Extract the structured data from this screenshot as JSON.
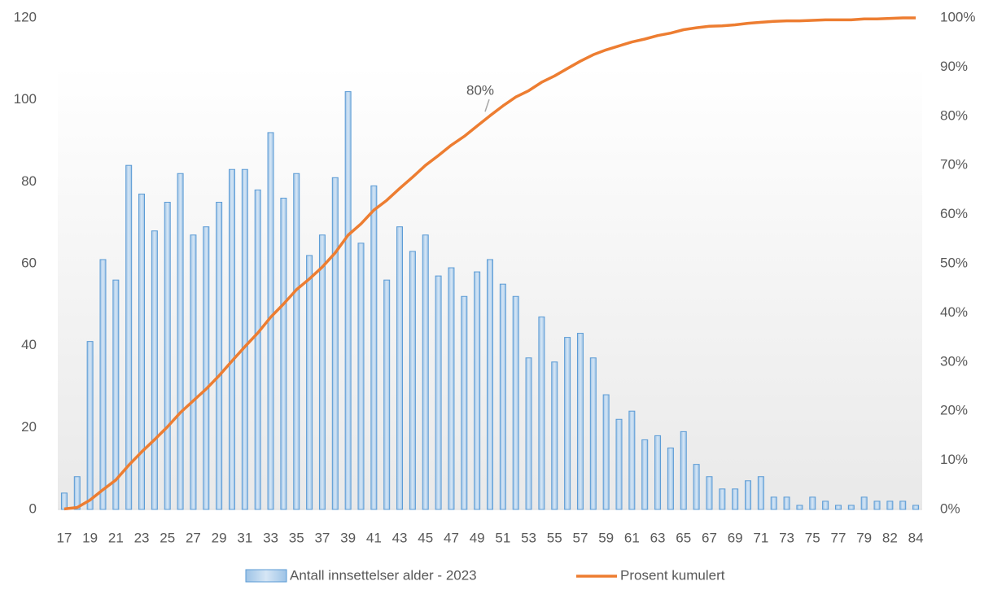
{
  "chart_data": {
    "type": "bar-line",
    "categories": [
      "17",
      null,
      "19",
      null,
      "21",
      null,
      "23",
      null,
      "25",
      null,
      "27",
      null,
      "29",
      null,
      "31",
      null,
      "33",
      null,
      "35",
      null,
      "37",
      null,
      "39",
      null,
      "41",
      null,
      "43",
      null,
      "45",
      null,
      "47",
      null,
      "49",
      null,
      "51",
      null,
      "53",
      null,
      "55",
      null,
      "57",
      null,
      "59",
      null,
      "61",
      null,
      "63",
      null,
      "65",
      null,
      "67",
      null,
      "69",
      null,
      "71",
      null,
      "73",
      null,
      "75",
      null,
      "77",
      null,
      "79",
      null,
      "82",
      null,
      "84"
    ],
    "series": [
      {
        "name": "Antall innsettelser alder - 2023",
        "type": "bar",
        "color": "#5b9bd5",
        "values": [
          4,
          8,
          41,
          61,
          56,
          84,
          77,
          68,
          75,
          82,
          67,
          69,
          75,
          83,
          83,
          78,
          92,
          76,
          82,
          62,
          67,
          81,
          102,
          65,
          79,
          56,
          69,
          63,
          67,
          57,
          59,
          52,
          58,
          61,
          55,
          52,
          37,
          47,
          36,
          42,
          43,
          37,
          28,
          22,
          24,
          17,
          18,
          15,
          19,
          11,
          8,
          5,
          5,
          7,
          8,
          3,
          3,
          1,
          3,
          2,
          1,
          1,
          3,
          2,
          2,
          2,
          1
        ]
      },
      {
        "name": "Prosent kumulert",
        "type": "line",
        "axis": "y2",
        "color": "#ed7d31",
        "values": [
          0.1,
          0.4,
          1.9,
          4.0,
          6.0,
          9.0,
          11.7,
          14.2,
          16.8,
          19.7,
          22.1,
          24.5,
          27.2,
          30.2,
          33.1,
          35.9,
          39.1,
          41.8,
          44.7,
          46.9,
          49.3,
          52.2,
          55.8,
          58.1,
          60.9,
          62.9,
          65.3,
          67.6,
          70.0,
          72.0,
          74.1,
          75.9,
          78.0,
          80.1,
          82.1,
          83.9,
          85.2,
          86.9,
          88.2,
          89.7,
          91.2,
          92.5,
          93.5,
          94.3,
          95.1,
          95.7,
          96.4,
          96.9,
          97.6,
          98.0,
          98.3,
          98.4,
          98.6,
          98.9,
          99.1,
          99.3,
          99.4,
          99.4,
          99.5,
          99.6,
          99.6,
          99.6,
          99.8,
          99.8,
          99.9,
          100.0,
          100.0
        ]
      }
    ],
    "annotation": "80%",
    "ylim": [
      0,
      120
    ],
    "yticks": [
      0,
      20,
      40,
      60,
      80,
      100,
      120
    ],
    "y2lim": [
      0,
      100
    ],
    "y2ticks": [
      {
        "value": 0,
        "label": "0%"
      },
      {
        "value": 10,
        "label": "10%"
      },
      {
        "value": 20,
        "label": "20%"
      },
      {
        "value": 30,
        "label": "30%"
      },
      {
        "value": 40,
        "label": "40%"
      },
      {
        "value": 50,
        "label": "50%"
      },
      {
        "value": 60,
        "label": "60%"
      },
      {
        "value": 70,
        "label": "70%"
      },
      {
        "value": 80,
        "label": "80%"
      },
      {
        "value": 90,
        "label": "90%"
      },
      {
        "value": 100,
        "label": "100%"
      }
    ],
    "legend": "bottom"
  }
}
